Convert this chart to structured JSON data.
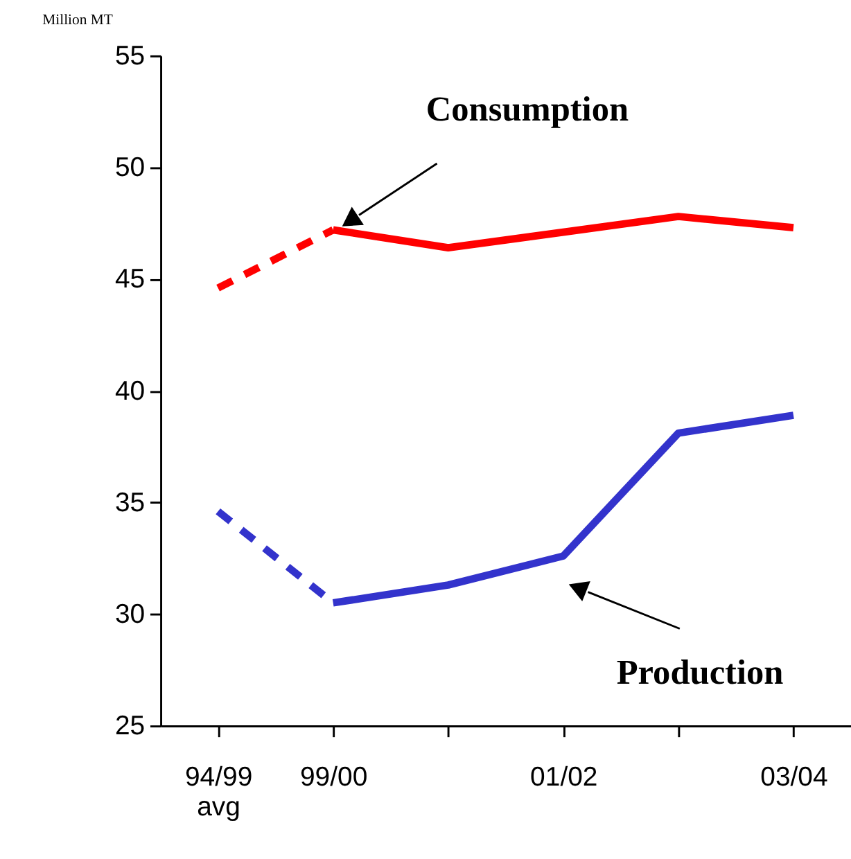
{
  "chart_data": {
    "type": "line",
    "categories": [
      "94/99\navg",
      "99/00",
      null,
      "01/02",
      null,
      "03/04"
    ],
    "ylabel": "Million MT",
    "ylim": [
      25,
      55
    ],
    "yticks": [
      25,
      30,
      35,
      40,
      45,
      50,
      55
    ],
    "grid": false,
    "marker": "none",
    "series": [
      {
        "color": "#ff0000",
        "line_style": "dashed",
        "values": [
          44.6,
          47.2,
          null,
          null,
          null,
          null
        ]
      },
      {
        "name": "Consumption",
        "color": "#ff0000",
        "line_style": "solid",
        "values": [
          null,
          47.2,
          46.4,
          47.1,
          47.8,
          47.3
        ]
      },
      {
        "color": "#3333cc",
        "line_style": "dashed",
        "values": [
          34.6,
          30.5,
          null,
          null,
          null,
          null
        ]
      },
      {
        "name": "Production",
        "color": "#3333cc",
        "line_style": "solid",
        "values": [
          null,
          30.5,
          31.3,
          32.6,
          38.1,
          38.9
        ]
      }
    ]
  }
}
